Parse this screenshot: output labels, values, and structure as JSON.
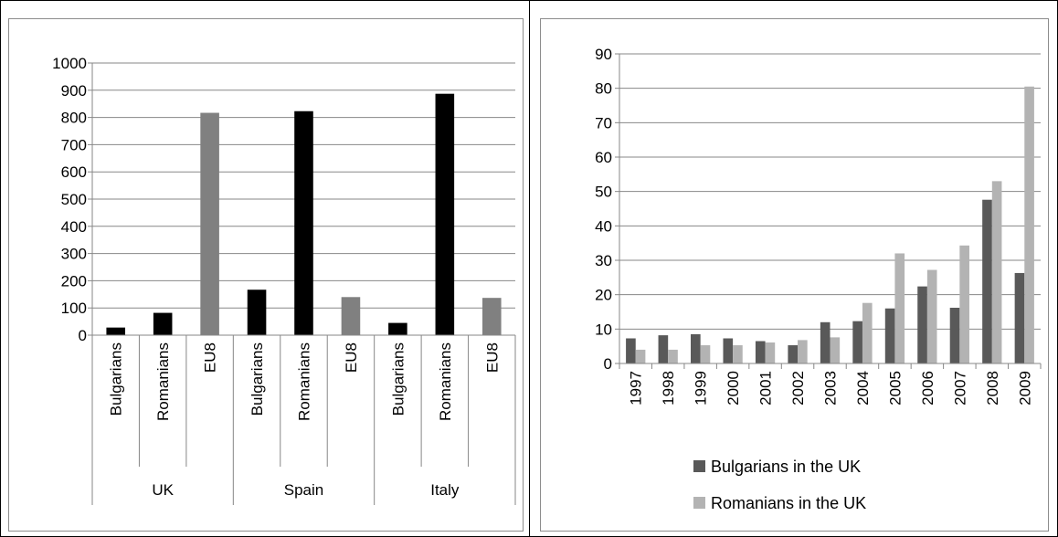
{
  "chart_data": [
    {
      "type": "bar",
      "title": "",
      "xlabel": "",
      "ylabel": "",
      "ylim": [
        0,
        1000
      ],
      "yticks": [
        0,
        100,
        200,
        300,
        400,
        500,
        600,
        700,
        800,
        900,
        1000
      ],
      "grid": true,
      "groups": [
        {
          "label": "UK",
          "categories": [
            "Bulgarians",
            "Romanians",
            "EU8"
          ],
          "values": [
            28,
            82,
            817
          ]
        },
        {
          "label": "Spain",
          "categories": [
            "Bulgarians",
            "Romanians",
            "EU8"
          ],
          "values": [
            167,
            823,
            140
          ]
        },
        {
          "label": "Italy",
          "categories": [
            "Bulgarians",
            "Romanians",
            "EU8"
          ],
          "values": [
            45,
            887,
            137
          ]
        }
      ],
      "colors": {
        "Bulgarians": "#000000",
        "Romanians": "#000000",
        "EU8": "#808080"
      }
    },
    {
      "type": "bar",
      "title": "",
      "xlabel": "",
      "ylabel": "",
      "ylim": [
        0,
        90
      ],
      "yticks": [
        0,
        10,
        20,
        30,
        40,
        50,
        60,
        70,
        80,
        90
      ],
      "grid": true,
      "legend_position": "bottom",
      "categories": [
        "1997",
        "1998",
        "1999",
        "2000",
        "2001",
        "2002",
        "2003",
        "2004",
        "2005",
        "2006",
        "2007",
        "2008",
        "2009"
      ],
      "series": [
        {
          "name": "Bulgarians in the UK",
          "color": "#595959",
          "values": [
            7.3,
            8.2,
            8.5,
            7.3,
            6.5,
            5.3,
            12,
            12.3,
            16,
            22.4,
            16.2,
            47.6,
            26.3
          ]
        },
        {
          "name": "Romanians in the UK",
          "color": "#b3b3b3",
          "values": [
            4,
            4,
            5.3,
            5.3,
            6.1,
            6.8,
            7.6,
            17.6,
            32,
            27.2,
            34.3,
            53,
            80.5
          ]
        }
      ]
    }
  ]
}
